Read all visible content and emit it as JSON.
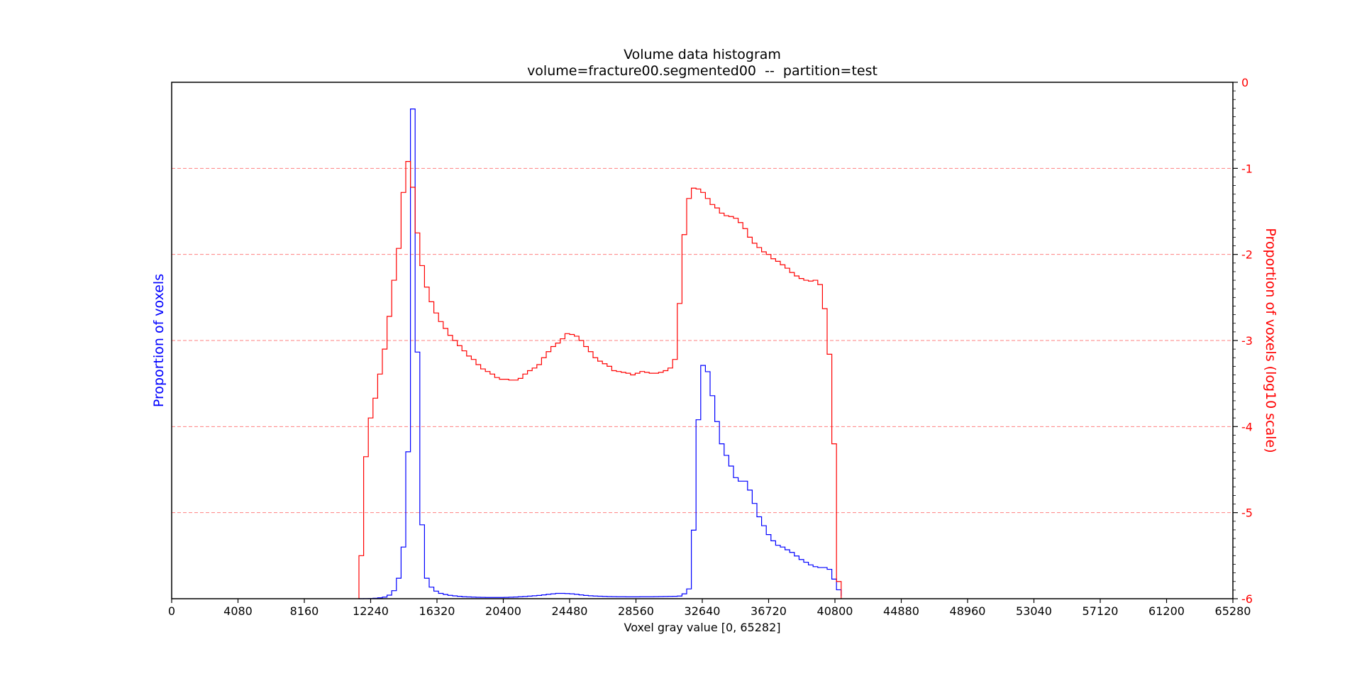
{
  "chart_data": {
    "type": "line",
    "title": "Volume data histogram",
    "subtitle": "volume=fracture00.segmented00  --  partition=test",
    "xlabel": "Voxel gray value [0, 65282]",
    "ylabel_left": "Proportion of voxels",
    "ylabel_right": "Proportion of voxels (log10 scale)",
    "xlim": [
      0,
      65280
    ],
    "x_ticks": [
      0,
      4080,
      8160,
      12240,
      16320,
      20400,
      24480,
      28560,
      32640,
      36720,
      40800,
      44880,
      48960,
      53040,
      57120,
      61200,
      65280
    ],
    "ylim_left": [
      0,
      0.058
    ],
    "ylim_right": [
      -6,
      0
    ],
    "right_ticks": [
      0,
      -1,
      -2,
      -3,
      -4,
      -5,
      -6
    ],
    "grid": "dashed horizontal lines at right-axis major ticks",
    "colors": {
      "linear": "#0000ff",
      "log": "#ff0000",
      "axes": "#000000",
      "grid": "#ff8080"
    },
    "bin_edges": [
      11520,
      11808,
      12096,
      12384,
      12672,
      12960,
      13248,
      13536,
      13824,
      14112,
      14400,
      14688,
      14976,
      15264,
      15552,
      15840,
      16128,
      16416,
      16704,
      16992,
      17280,
      17568,
      17856,
      18144,
      18432,
      18720,
      19008,
      19296,
      19584,
      19872,
      20160,
      20448,
      20736,
      21024,
      21312,
      21600,
      21888,
      22176,
      22464,
      22752,
      23040,
      23328,
      23616,
      23904,
      24192,
      24480,
      24768,
      25056,
      25344,
      25632,
      25920,
      26208,
      26496,
      26784,
      27072,
      27360,
      27648,
      27936,
      28224,
      28512,
      28800,
      29088,
      29376,
      29664,
      29952,
      30240,
      30528,
      30816,
      31104,
      31392,
      31680,
      31968,
      32256,
      32544,
      32832,
      33120,
      33408,
      33696,
      33984,
      34272,
      34560,
      34848,
      35136,
      35424,
      35712,
      36000,
      36288,
      36576,
      36864,
      37152,
      37440,
      37728,
      38016,
      38304,
      38592,
      38880,
      39168,
      39456,
      39744,
      40032,
      40320,
      40608,
      40896,
      41184
    ],
    "series": [
      {
        "axis": "left",
        "values": [
          2e-06,
          8e-06,
          2e-05,
          5e-05,
          0.0001,
          0.00018,
          0.0004,
          0.0009,
          0.0023,
          0.0058,
          0.0165,
          0.055,
          0.0277,
          0.0083,
          0.0023,
          0.0013,
          0.00085,
          0.0006,
          0.00048,
          0.00038,
          0.00032,
          0.00027,
          0.00022,
          0.0002,
          0.00018,
          0.00016,
          0.00015,
          0.00014,
          0.00014,
          0.00014,
          0.00014,
          0.00015,
          0.00017,
          0.00019,
          0.00022,
          0.00025,
          0.00029,
          0.00033,
          0.00037,
          0.00043,
          0.0005,
          0.00055,
          0.0006,
          0.0006,
          0.00058,
          0.00055,
          0.0005,
          0.00043,
          0.00037,
          0.00033,
          0.0003,
          0.00028,
          0.00026,
          0.00024,
          0.00023,
          0.00022,
          0.00022,
          0.00021,
          0.00021,
          0.00021,
          0.00022,
          0.00022,
          0.00022,
          0.00023,
          0.00024,
          0.00025,
          0.00026,
          0.00027,
          0.0003,
          0.00055,
          0.0011,
          0.0077,
          0.0201,
          0.0262,
          0.0255,
          0.0228,
          0.0199,
          0.0174,
          0.0161,
          0.0149,
          0.0136,
          0.0132,
          0.0132,
          0.0122,
          0.0107,
          0.0092,
          0.0082,
          0.0072,
          0.0065,
          0.006,
          0.0058,
          0.0055,
          0.0052,
          0.0048,
          0.0044,
          0.0041,
          0.0038,
          0.0036,
          0.0035,
          0.0035,
          0.0033,
          0.0022,
          0.001,
          0.0003
        ]
      },
      {
        "axis": "right",
        "values": [
          -5.5,
          -4.35,
          -3.9,
          -3.67,
          -3.39,
          -3.1,
          -2.72,
          -2.3,
          -1.93,
          -1.28,
          -0.92,
          -1.22,
          -1.75,
          -2.13,
          -2.38,
          -2.55,
          -2.68,
          -2.78,
          -2.86,
          -2.94,
          -3.0,
          -3.06,
          -3.12,
          -3.18,
          -3.22,
          -3.28,
          -3.33,
          -3.36,
          -3.39,
          -3.43,
          -3.45,
          -3.45,
          -3.46,
          -3.46,
          -3.44,
          -3.39,
          -3.35,
          -3.32,
          -3.28,
          -3.2,
          -3.13,
          -3.07,
          -3.03,
          -2.98,
          -2.92,
          -2.93,
          -2.95,
          -3.0,
          -3.07,
          -3.13,
          -3.2,
          -3.24,
          -3.27,
          -3.3,
          -3.35,
          -3.36,
          -3.37,
          -3.38,
          -3.4,
          -3.38,
          -3.36,
          -3.37,
          -3.38,
          -3.38,
          -3.37,
          -3.35,
          -3.32,
          -3.22,
          -2.57,
          -1.77,
          -1.35,
          -1.23,
          -1.24,
          -1.28,
          -1.35,
          -1.42,
          -1.46,
          -1.52,
          -1.55,
          -1.56,
          -1.58,
          -1.63,
          -1.7,
          -1.8,
          -1.87,
          -1.92,
          -1.97,
          -2.0,
          -2.05,
          -2.08,
          -2.12,
          -2.16,
          -2.21,
          -2.25,
          -2.28,
          -2.3,
          -2.31,
          -2.3,
          -2.35,
          -2.63,
          -3.16,
          -4.2,
          -5.8
        ]
      }
    ]
  }
}
